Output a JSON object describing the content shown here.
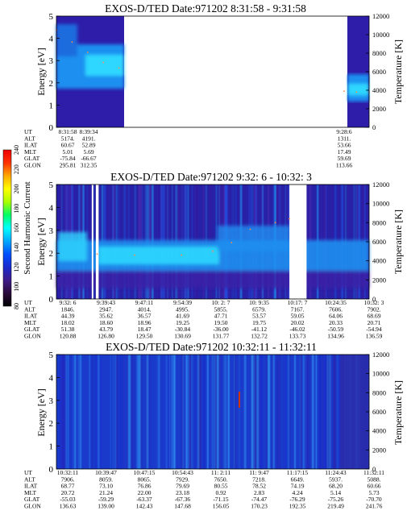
{
  "colors": {
    "background": "#0000aa",
    "spectrogram_scale": [
      "#000000",
      "#2a0a3a",
      "#3f1b8a",
      "#1a2acd",
      "#0050ff",
      "#00aaff",
      "#00ffff",
      "#00ff66",
      "#aaff00",
      "#ffff00",
      "#ffaa00",
      "#ff3300",
      "#ee0000"
    ]
  },
  "colorbar": {
    "label": "Second Harmonic Current",
    "ticks": [
      "80",
      "100",
      "120",
      "140",
      "160",
      "180",
      "200",
      "220",
      "240"
    ]
  },
  "chart_data": [
    {
      "type": "heatmap",
      "title": "EXOS-D/TED   Date:971202  8:31:58 - 9:31:58",
      "ylabel": "Energy [eV]",
      "ylabel_right": "Temperature [K]",
      "ylim": [
        0,
        5
      ],
      "y2lim": [
        0,
        12000
      ],
      "yticks": [
        "0",
        "1",
        "2",
        "3",
        "4",
        "5"
      ],
      "y2ticks": [
        "0",
        "2000",
        "4000",
        "6000",
        "8000",
        "10000",
        "12000"
      ],
      "data_segments": [
        [
          0.0,
          0.2
        ],
        [
          0.92,
          1.0
        ]
      ],
      "temperature_trace": [
        [
          0.0,
          10500
        ],
        [
          0.05,
          9200
        ],
        [
          0.1,
          8100
        ],
        [
          0.15,
          7000
        ],
        [
          0.2,
          6400
        ],
        [
          0.92,
          3900
        ],
        [
          0.96,
          3800
        ],
        [
          1.0,
          3800
        ]
      ],
      "row_labels": [
        "UT",
        "ALT",
        "ILAT",
        "MLT",
        "GLAT",
        "GLON"
      ],
      "columns": [
        {
          "UT": "8:31:58",
          "ALT": "5174.",
          "ILAT": "60.67",
          "MLT": "5.01",
          "GLAT": "-75.84",
          "GLON": "295.81"
        },
        {
          "UT": "8:39:34",
          "ALT": "4191.",
          "ILAT": "52.89",
          "MLT": "5.69",
          "GLAT": "-66.67",
          "GLON": "312.35"
        },
        {
          "UT": "9:28:6",
          "ALT": "1311.",
          "ILAT": "53.66",
          "MLT": "17.49",
          "GLAT": "59.69",
          "GLON": "113.66"
        }
      ]
    },
    {
      "type": "heatmap",
      "title": "EXOS-D/TED   Date:971202  9:32: 6 - 10:32: 3",
      "ylabel": "Energy [eV]",
      "ylabel_right": "Temperature [K]",
      "ylim": [
        0,
        5
      ],
      "y2lim": [
        0,
        12000
      ],
      "yticks": [
        "0",
        "1",
        "2",
        "3",
        "4",
        "5"
      ],
      "y2ticks": [
        "0",
        "2000",
        "4000",
        "6000",
        "8000",
        "10000",
        "12000"
      ],
      "gaps": [
        [
          0.113,
          0.118
        ],
        [
          0.126,
          0.135
        ],
        [
          0.745,
          0.8
        ]
      ],
      "temperature_trace": [
        [
          0.13,
          4700
        ],
        [
          0.25,
          4600
        ],
        [
          0.4,
          4600
        ],
        [
          0.5,
          5000
        ],
        [
          0.56,
          5900
        ],
        [
          0.62,
          7300
        ],
        [
          0.7,
          8000
        ],
        [
          0.745,
          8400
        ]
      ],
      "row_labels": [
        "UT",
        "ALT",
        "ILAT",
        "MLT",
        "GLAT",
        "GLON"
      ],
      "columns": [
        {
          "UT": "9:32: 6",
          "ALT": "1846.",
          "ILAT": "44.39",
          "MLT": "18.02",
          "GLAT": "51.38",
          "GLON": "120.88"
        },
        {
          "UT": "9:39:43",
          "ALT": "2947.",
          "ILAT": "35.62",
          "MLT": "18.60",
          "GLAT": "43.79",
          "GLON": "126.80"
        },
        {
          "UT": "9:47:11",
          "ALT": "4014.",
          "ILAT": "36.57",
          "MLT": "18.96",
          "GLAT": "18.47",
          "GLON": "129.50"
        },
        {
          "UT": "9:54:39",
          "ALT": "4995.",
          "ILAT": "41.69",
          "MLT": "19.25",
          "GLAT": "-30.84",
          "GLON": "130.69"
        },
        {
          "UT": "10: 2: 7",
          "ALT": "5855.",
          "ILAT": "47.71",
          "MLT": "19.50",
          "GLAT": "-36.00",
          "GLON": "131.77"
        },
        {
          "UT": "10: 9:35",
          "ALT": "6579.",
          "ILAT": "53.57",
          "MLT": "19.75",
          "GLAT": "-41.12",
          "GLON": "132.72"
        },
        {
          "UT": "10:17: 7",
          "ALT": "7167.",
          "ILAT": "59.05",
          "MLT": "20.02",
          "GLAT": "-46.02",
          "GLON": "133.73"
        },
        {
          "UT": "10:24:35",
          "ALT": "7606.",
          "ILAT": "64.06",
          "MLT": "20.33",
          "GLAT": "-50.59",
          "GLON": "134.96"
        },
        {
          "UT": "10:32: 3",
          "ALT": "7902.",
          "ILAT": "68.69",
          "MLT": "20.71",
          "GLAT": "-54.94",
          "GLON": "136.59"
        }
      ]
    },
    {
      "type": "heatmap",
      "title": "EXOS-D/TED   Date:971202  10:32:11 - 11:32:11",
      "ylabel": "Energy [eV]",
      "ylabel_right": "Temperature [K]",
      "ylim": [
        0,
        5
      ],
      "y2lim": [
        0,
        12000
      ],
      "yticks": [
        "0",
        "1",
        "2",
        "3",
        "4",
        "5"
      ],
      "y2ticks": [
        "0",
        "2000",
        "4000",
        "6000",
        "8000",
        "10000",
        "12000"
      ],
      "row_labels": [
        "UT",
        "ALT",
        "ILAT",
        "MLT",
        "GLAT",
        "GLON"
      ],
      "columns": [
        {
          "UT": "10:32:11",
          "ALT": "7906.",
          "ILAT": "68.77",
          "MLT": "20.72",
          "GLAT": "-55.03",
          "GLON": "136.63"
        },
        {
          "UT": "10:39:47",
          "ALT": "8059.",
          "ILAT": "73.10",
          "MLT": "21.24",
          "GLAT": "-59.29",
          "GLON": "139.00"
        },
        {
          "UT": "10:47:15",
          "ALT": "8065.",
          "ILAT": "76.86",
          "MLT": "22.00",
          "GLAT": "-63.37",
          "GLON": "142.43"
        },
        {
          "UT": "10:54:43",
          "ALT": "7929.",
          "ILAT": "79.69",
          "MLT": "23.18",
          "GLAT": "-67.36",
          "GLON": "147.68"
        },
        {
          "UT": "11: 2:11",
          "ALT": "7650.",
          "ILAT": "80.55",
          "MLT": "0.92",
          "GLAT": "-71.15",
          "GLON": "156.05"
        },
        {
          "UT": "11: 9:47",
          "ALT": "7218.",
          "ILAT": "78.52",
          "MLT": "2.83",
          "GLAT": "-74.47",
          "GLON": "170.23"
        },
        {
          "UT": "11:17:15",
          "ALT": "6649.",
          "ILAT": "74.19",
          "MLT": "4.24",
          "GLAT": "-76.29",
          "GLON": "192.35"
        },
        {
          "UT": "11:24:43",
          "ALT": "5937.",
          "ILAT": "68.20",
          "MLT": "5.14",
          "GLAT": "-75.26",
          "GLON": "219.49"
        },
        {
          "UT": "11:32:11",
          "ALT": "5088.",
          "ILAT": "60.66",
          "MLT": "5.73",
          "GLAT": "-70.70",
          "GLON": "241.76"
        }
      ]
    }
  ]
}
